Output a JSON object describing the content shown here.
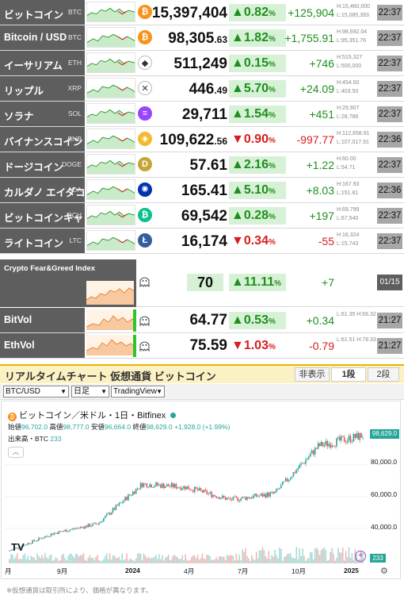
{
  "rows": [
    {
      "name": "ビットコイン",
      "code": "BTC",
      "icon": "bitcoin-icon",
      "icon_color": "#f7931a",
      "icon_glyph": "₿",
      "price": "15,397,404",
      "price_dec": "",
      "change": "▲0.82",
      "change_unit": "%",
      "dir": "up",
      "diff": "+125,904",
      "high": "H:15,460,000",
      "low": "L:15,085,393",
      "time": "22:37"
    },
    {
      "name": "Bitcoin / USD",
      "code": "BTC",
      "icon": "bitcoin-icon",
      "icon_color": "#f7931a",
      "icon_glyph": "₿",
      "price": "98,305",
      "price_dec": ".63",
      "change": "▲1.82",
      "change_unit": "%",
      "dir": "up",
      "diff": "+1,755.91",
      "high": "H:98,692.04",
      "low": "L:95,351.76",
      "time": "22:37"
    },
    {
      "name": "イーサリアム",
      "code": "ETH",
      "icon": "ethereum-icon",
      "icon_color": "#ffffff",
      "icon_glyph": "◆",
      "price": "511,249",
      "price_dec": "",
      "change": "▲0.15",
      "change_unit": "%",
      "dir": "up",
      "diff": "+746",
      "high": "H:515,327",
      "low": "L:500,000",
      "time": "22:37"
    },
    {
      "name": "リップル",
      "code": "XRP",
      "icon": "xrp-icon",
      "icon_color": "#ffffff",
      "icon_glyph": "✕",
      "price": "446",
      "price_dec": ".49",
      "change": "▲5.70",
      "change_unit": "%",
      "dir": "up",
      "diff": "+24.09",
      "high": "H:454.50",
      "low": "L:403.50",
      "time": "22:37"
    },
    {
      "name": "ソラナ",
      "code": "SOL",
      "icon": "solana-icon",
      "icon_color": "#9945ff",
      "icon_glyph": "≡",
      "price": "29,711",
      "price_dec": "",
      "change": "▲1.54",
      "change_unit": "%",
      "dir": "up",
      "diff": "+451",
      "high": "H:29,907",
      "low": "L:28,786",
      "time": "22:37"
    },
    {
      "name": "バイナンスコイン",
      "code": "BNB",
      "icon": "bnb-icon",
      "icon_color": "#f3ba2f",
      "icon_glyph": "◈",
      "price": "109,622",
      "price_dec": ".56",
      "change": "▼0.90",
      "change_unit": "%",
      "dir": "down",
      "diff": "-997.77",
      "high": "H:112,658.91",
      "low": "L:107,017.91",
      "time": "22:36"
    },
    {
      "name": "ドージコイン",
      "code": "DOGE",
      "icon": "doge-icon",
      "icon_color": "#c3a634",
      "icon_glyph": "D",
      "price": "57.61",
      "price_dec": "",
      "change": "▲2.16",
      "change_unit": "%",
      "dir": "up",
      "diff": "+1.22",
      "high": "H:60.00",
      "low": "L:54.71",
      "time": "22:37"
    },
    {
      "name": "カルダノ エイダコイン",
      "code": "ADA",
      "icon": "cardano-icon",
      "icon_color": "#0033ad",
      "icon_glyph": "✺",
      "price": "165.41",
      "price_dec": "",
      "change": "▲5.10",
      "change_unit": "%",
      "dir": "up",
      "diff": "+8.03",
      "high": "H:167.93",
      "low": "L:151.81",
      "time": "22:36"
    },
    {
      "name": "ビットコインキャッシュ",
      "code": "BCH",
      "icon": "bch-icon",
      "icon_color": "#0ac18e",
      "icon_glyph": "₿",
      "price": "69,542",
      "price_dec": "",
      "change": "▲0.28",
      "change_unit": "%",
      "dir": "up",
      "diff": "+197",
      "high": "H:69,799",
      "low": "L:67,540",
      "time": "22:37"
    },
    {
      "name": "ライトコイン",
      "code": "LTC",
      "icon": "litecoin-icon",
      "icon_color": "#345d9d",
      "icon_glyph": "Ł",
      "price": "16,174",
      "price_dec": "",
      "change": "▼0.34",
      "change_unit": "%",
      "dir": "down",
      "diff": "-55",
      "high": "H:16,324",
      "low": "L:15,743",
      "time": "22:37"
    }
  ],
  "fear_greed": {
    "title": "Crypto Fear&Greed Index",
    "value": "70",
    "change": "▲11.11",
    "change_unit": "%",
    "diff": "+7",
    "date": "01/15"
  },
  "bitvol": {
    "name": "BitVol",
    "value": "64.77",
    "change": "▲0.53",
    "change_unit": "%",
    "dir": "up",
    "diff": "+0.34",
    "hl": "L:61.35 H:66.32",
    "time": "21:27"
  },
  "ethvol": {
    "name": "EthVol",
    "value": "75.59",
    "change": "▼1.03",
    "change_unit": "%",
    "dir": "down",
    "diff": "-0.79",
    "hl": "L:61.51 H:78.33",
    "time": "21:27"
  },
  "realtime": {
    "title": "リアルタイムチャート 仮想通貨 ビットコイン",
    "btn_hide": "非表示",
    "btn_1": "1段",
    "btn_2": "2段"
  },
  "controls": {
    "symbol": "BTC/USD",
    "period": "日足",
    "provider": "TradingView"
  },
  "chart": {
    "title": "ビットコイン／米ドル・1日・Bitfinex",
    "ohlc_open_label": "始値",
    "ohlc_open": "96,702.0",
    "ohlc_high_label": "高値",
    "ohlc_high": "98,777.0",
    "ohlc_low_label": "安値",
    "ohlc_low": "96,664.0",
    "ohlc_close_label": "終値",
    "ohlc_close": "98,629.0",
    "ohlc_change": "+1,928.0 (+1.99%)",
    "volume_label": "出来高・BTC",
    "volume_value": "233",
    "last_price": "98,629.0",
    "last_volume": "233",
    "y_ticks": [
      "80,000.0",
      "60,000.0",
      "40,000.0"
    ],
    "x_ticks": [
      "月",
      "9月",
      "2024",
      "4月",
      "7月",
      "10月",
      "2025"
    ],
    "tv_logo": "TV"
  },
  "chart_data": {
    "type": "candlestick",
    "ylim": [
      20000,
      110000
    ],
    "x": [
      "2023-09",
      "2023-11",
      "2024-01",
      "2024-03",
      "2024-05",
      "2024-07",
      "2024-09",
      "2024-11",
      "2025-01"
    ],
    "close_approx": [
      26000,
      37000,
      43000,
      68000,
      66000,
      58000,
      62000,
      92000,
      98629
    ]
  },
  "note": "※仮想通貨は取引所により、価格が異なります。"
}
